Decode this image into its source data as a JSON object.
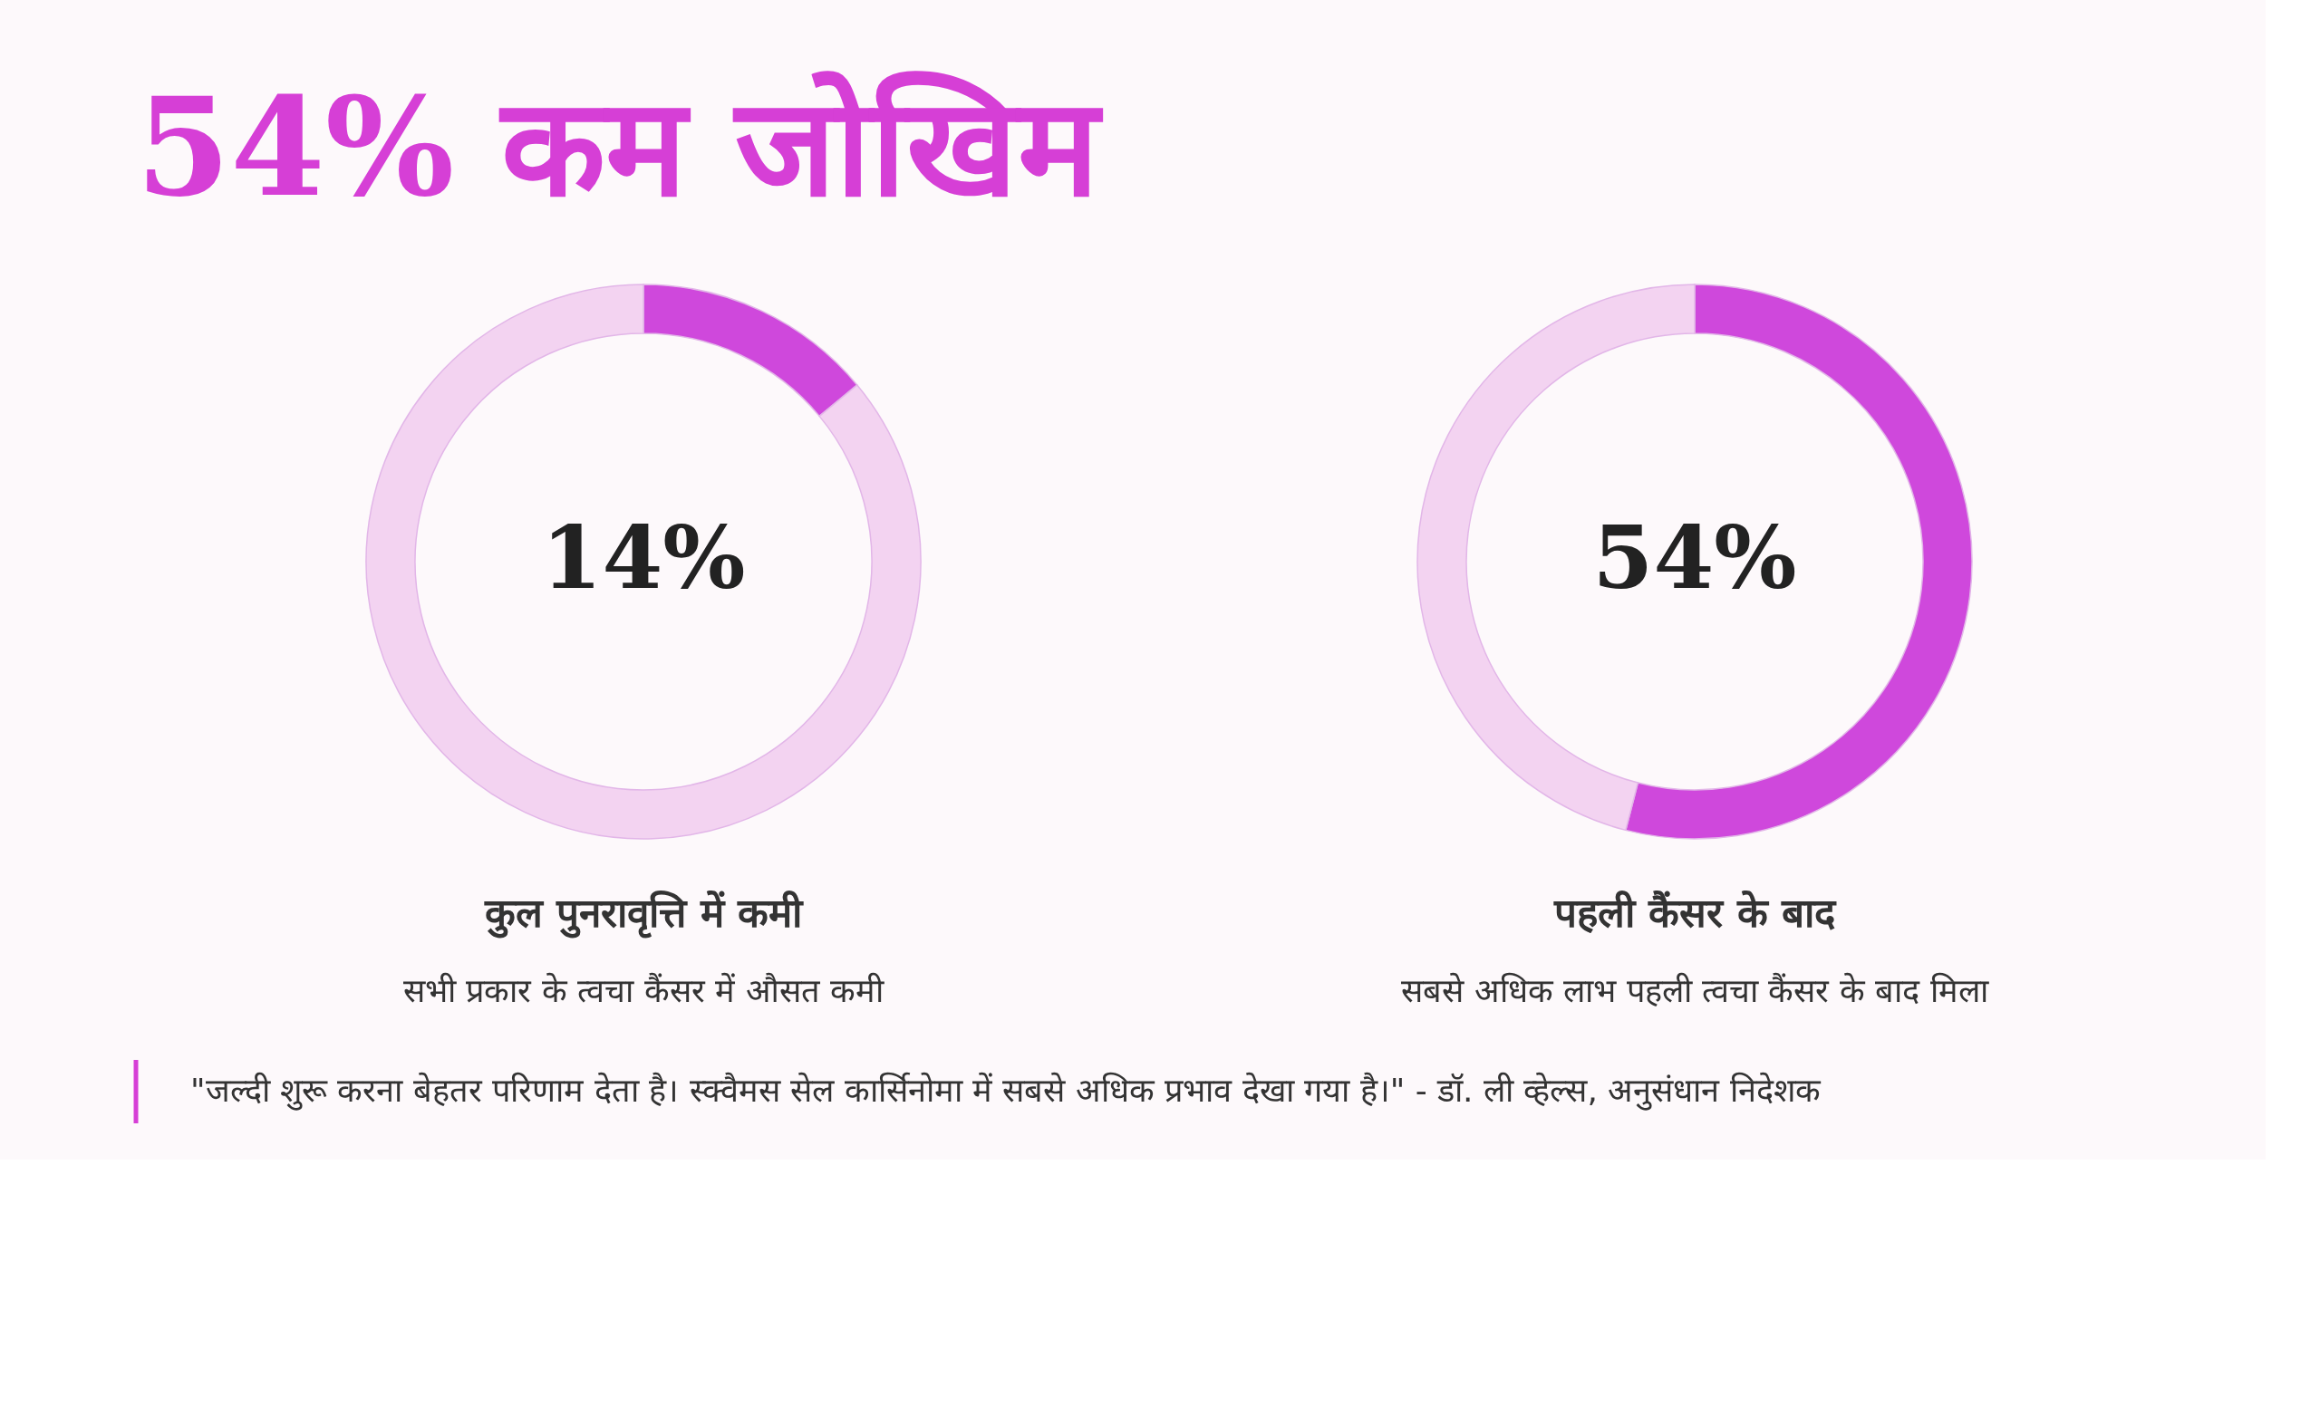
{
  "chart_data": [
    {
      "type": "other",
      "title": "54% कम जोखिम"
    },
    {
      "type": "donut",
      "title": "कुल पुनरावृत्ति में कमी",
      "subtitle": "सभी प्रकार के त्वचा कैंसर में औसत कमी",
      "categories": [
        null,
        null
      ],
      "values": [
        14,
        86
      ],
      "colors": [
        "#cf48dc",
        "#f3d3f1"
      ],
      "value_labels": [
        "14%",
        null
      ]
    },
    {
      "type": "donut",
      "title": "पहली कैंसर के बाद",
      "subtitle": "सबसे अधिक लाभ पहली त्वचा कैंसर के बाद मिला",
      "categories": [
        null,
        null
      ],
      "values": [
        54,
        46
      ],
      "colors": [
        "#c548e4",
        "#f3d3f1"
      ],
      "value_labels": [
        "54%",
        null
      ]
    },
    {
      "type": "other",
      "annotations": [
        "\"जल्दी शुरू करना बेहतर परिणाम देता है। स्क्वैमस सेल कार्सिनोमा में सबसे अधिक प्रभाव देखा गया है।\" - डॉ. ली व्हेल्स, अनुसंधान निदेशक"
      ]
    }
  ]
}
